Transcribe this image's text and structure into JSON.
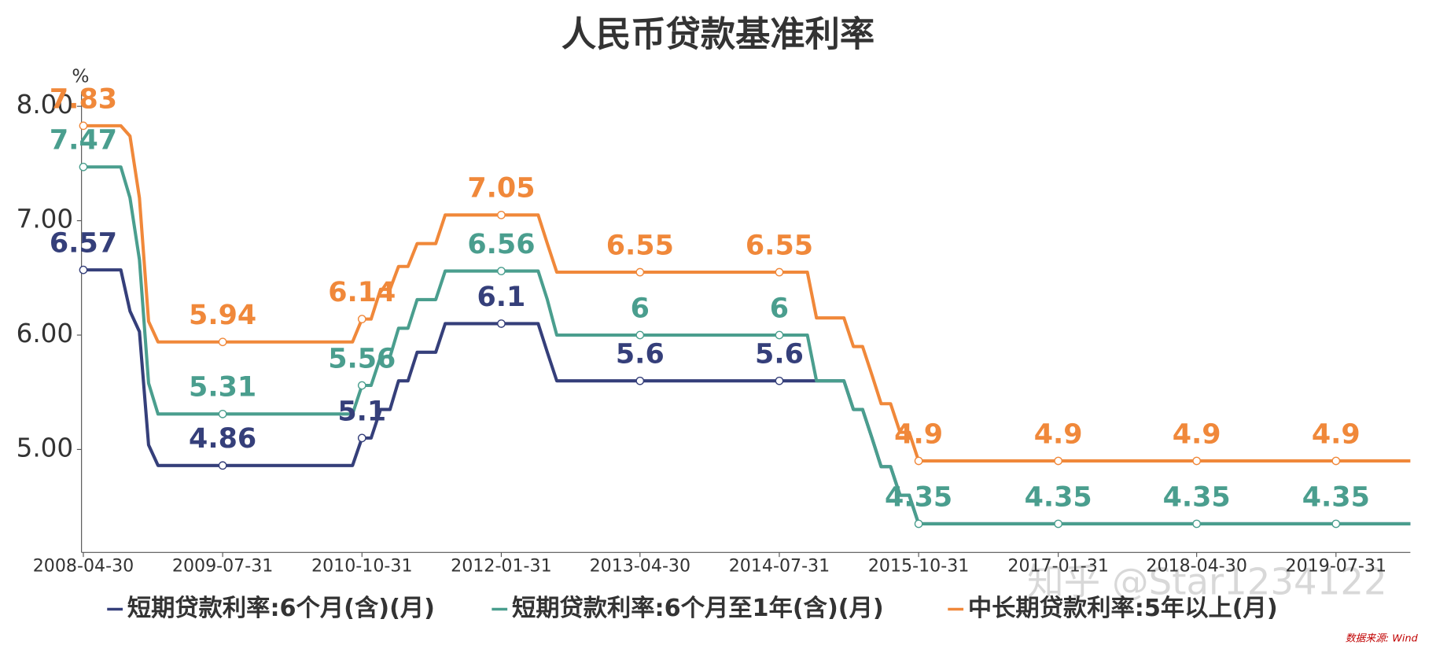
{
  "chart_data": {
    "type": "line",
    "title": "人民币贷款基准利率",
    "ylabel": "%",
    "watermark": "知乎 @Star1234122",
    "source": "数据来源: Wind",
    "x": [
      "2008-04-30",
      "2008-08-31",
      "2008-09-30",
      "2008-10-31",
      "2008-11-30",
      "2008-12-31",
      "2009-07-31",
      "2010-09-30",
      "2010-10-31",
      "2010-11-30",
      "2010-12-31",
      "2011-01-31",
      "2011-02-28",
      "2011-03-31",
      "2011-04-30",
      "2011-06-30",
      "2011-07-31",
      "2012-01-31",
      "2012-05-31",
      "2012-06-30",
      "2012-07-31",
      "2013-04-30",
      "2014-07-31",
      "2014-10-31",
      "2014-11-30",
      "2015-02-28",
      "2015-03-31",
      "2015-04-30",
      "2015-05-31",
      "2015-06-30",
      "2015-07-31",
      "2015-08-31",
      "2015-09-30",
      "2015-10-31",
      "2017-01-31",
      "2018-04-30",
      "2019-07-31",
      "2020-03-31"
    ],
    "series": [
      {
        "name": "短期贷款利率:6个月(含)(月)",
        "color": "#353f7a",
        "values": [
          6.57,
          6.57,
          6.21,
          6.03,
          5.04,
          4.86,
          4.86,
          4.86,
          5.1,
          5.1,
          5.35,
          5.35,
          5.6,
          5.6,
          5.85,
          5.85,
          6.1,
          6.1,
          6.1,
          5.85,
          5.6,
          5.6,
          5.6,
          5.6,
          5.6,
          5.6,
          5.35,
          5.35,
          5.1,
          4.85,
          4.85,
          4.6,
          4.6,
          4.35,
          4.35,
          4.35,
          4.35,
          4.35
        ],
        "value_labels": [
          "6.57",
          null,
          null,
          null,
          null,
          null,
          "4.86",
          null,
          "5.1",
          null,
          null,
          null,
          null,
          null,
          null,
          null,
          null,
          "6.1",
          null,
          null,
          null,
          "5.6",
          "5.6",
          null,
          null,
          null,
          null,
          null,
          null,
          null,
          null,
          null,
          null,
          null,
          null,
          null,
          null,
          null
        ]
      },
      {
        "name": "短期贷款利率:6个月至1年(含)(月)",
        "color": "#4a9e8e",
        "values": [
          7.47,
          7.47,
          7.2,
          6.66,
          5.58,
          5.31,
          5.31,
          5.31,
          5.56,
          5.56,
          5.81,
          5.81,
          6.06,
          6.06,
          6.31,
          6.31,
          6.56,
          6.56,
          6.56,
          6.31,
          6,
          6,
          6,
          6,
          5.6,
          5.6,
          5.35,
          5.35,
          5.1,
          4.85,
          4.85,
          4.6,
          4.6,
          4.35,
          4.35,
          4.35,
          4.35,
          4.35
        ],
        "value_labels": [
          "7.47",
          null,
          null,
          null,
          null,
          null,
          "5.31",
          null,
          "5.56",
          null,
          null,
          null,
          null,
          null,
          null,
          null,
          null,
          "6.56",
          null,
          null,
          null,
          "6",
          "6",
          null,
          null,
          null,
          null,
          null,
          null,
          null,
          null,
          null,
          null,
          "4.35",
          "4.35",
          "4.35",
          "4.35",
          null
        ]
      },
      {
        "name": "中长期贷款利率:5年以上(月)",
        "color": "#f0883a",
        "values": [
          7.83,
          7.83,
          7.74,
          7.2,
          6.12,
          5.94,
          5.94,
          5.94,
          6.14,
          6.14,
          6.4,
          6.4,
          6.6,
          6.6,
          6.8,
          6.8,
          7.05,
          7.05,
          7.05,
          6.8,
          6.55,
          6.55,
          6.55,
          6.55,
          6.15,
          6.15,
          5.9,
          5.9,
          5.65,
          5.4,
          5.4,
          5.15,
          5.15,
          4.9,
          4.9,
          4.9,
          4.9,
          4.9
        ],
        "value_labels": [
          "7.83",
          null,
          null,
          null,
          null,
          null,
          "5.94",
          null,
          "6.14",
          null,
          null,
          null,
          null,
          null,
          null,
          null,
          null,
          "7.05",
          null,
          null,
          null,
          "6.55",
          "6.55",
          null,
          null,
          null,
          null,
          null,
          null,
          null,
          null,
          null,
          null,
          "4.9",
          "4.9",
          "4.9",
          "4.9",
          null
        ]
      }
    ],
    "xlim": [
      "2008-04-30",
      "2020-03-31"
    ],
    "xticks": [
      "2008-04-30",
      "2009-07-31",
      "2010-10-31",
      "2012-01-31",
      "2013-04-30",
      "2014-07-31",
      "2015-10-31",
      "2017-01-31",
      "2018-04-30",
      "2019-07-31"
    ],
    "ylim": [
      4.1,
      8.1
    ],
    "yticks": [
      {
        "value": 5,
        "label": "5.00"
      },
      {
        "value": 6,
        "label": "6.00"
      },
      {
        "value": 7,
        "label": "7.00"
      },
      {
        "value": 8,
        "label": "8.00"
      }
    ],
    "grid": false,
    "legend": "bottom"
  }
}
